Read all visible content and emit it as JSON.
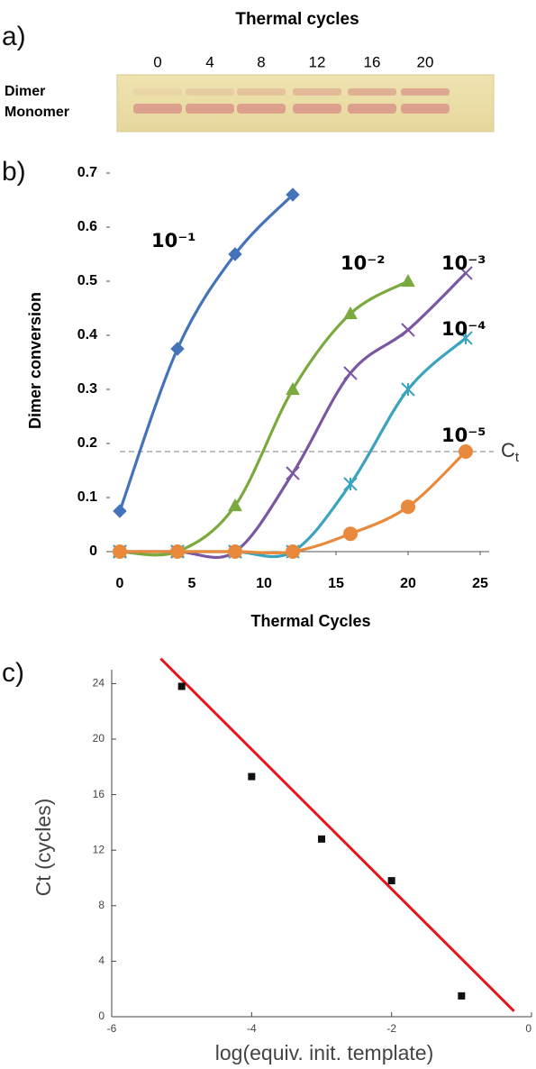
{
  "gel": {
    "panel_label": "a)",
    "title": "Thermal cycles",
    "lanes": [
      "0",
      "4",
      "8",
      "12",
      "16",
      "20"
    ],
    "bands": [
      "Dimer",
      "Monomer"
    ]
  },
  "chart_data": [
    {
      "type": "line",
      "panel_label": "b)",
      "xlabel": "Thermal Cycles",
      "ylabel": "Dimer conversion",
      "x": [
        0,
        4,
        8,
        12,
        16,
        20,
        24
      ],
      "xlim": [
        0,
        25
      ],
      "xticks": [
        0,
        5,
        10,
        15,
        20,
        25
      ],
      "ylim": [
        0,
        0.7
      ],
      "yticks": [
        0,
        0.1,
        0.2,
        0.3,
        0.4,
        0.5,
        0.6,
        0.7
      ],
      "series": [
        {
          "name": "10⁻¹",
          "color": "#4573b9",
          "marker": "diamond",
          "values": [
            0.075,
            0.375,
            0.55,
            0.66,
            null,
            null,
            null
          ]
        },
        {
          "name": "10⁻²",
          "color": "#7aaa3e",
          "marker": "triangle",
          "values": [
            0,
            0,
            0.085,
            0.3,
            0.44,
            0.5,
            null
          ]
        },
        {
          "name": "10⁻³",
          "color": "#7b57a3",
          "marker": "cross",
          "values": [
            0,
            0,
            0,
            0.145,
            0.33,
            0.41,
            0.515
          ]
        },
        {
          "name": "10⁻⁴",
          "color": "#3aa3bd",
          "marker": "star",
          "values": [
            0,
            0,
            0,
            0,
            0.125,
            0.3,
            0.395
          ]
        },
        {
          "name": "10⁻⁵",
          "color": "#e9893c",
          "marker": "circle",
          "values": [
            0,
            0,
            0,
            0,
            0.033,
            0.083,
            0.185
          ]
        }
      ],
      "threshold": {
        "value": 0.185,
        "label": "C",
        "label_sub": "t",
        "color": "#999999"
      }
    },
    {
      "type": "scatter",
      "panel_label": "c)",
      "xlabel": "log(equiv. init. template)",
      "ylabel": "Ct (cycles)",
      "x": [
        -5,
        -4,
        -3,
        -2,
        -1
      ],
      "values": [
        23.8,
        17.3,
        12.8,
        9.8,
        1.5
      ],
      "color": "#111111",
      "xlim": [
        -6,
        0
      ],
      "xticks": [
        -6,
        -4,
        -2,
        0
      ],
      "ylim": [
        0,
        25
      ],
      "yticks": [
        0,
        4,
        8,
        12,
        16,
        20,
        24
      ],
      "fit": {
        "x": [
          -5.3,
          -0.25
        ],
        "y": [
          25.8,
          0.4
        ],
        "color": "#e8141b"
      }
    }
  ]
}
